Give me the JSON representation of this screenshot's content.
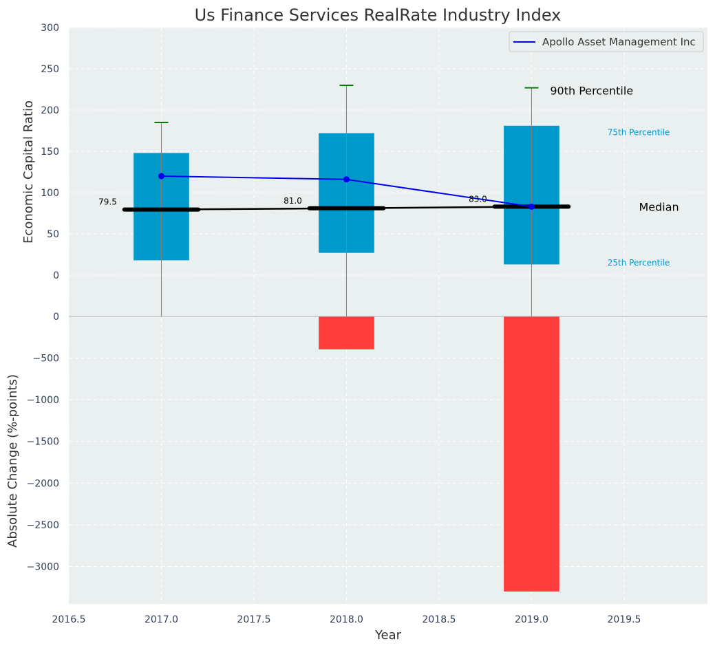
{
  "chart_data": [
    {
      "type": "box",
      "title": "Us Finance Services RealRate Industry Index",
      "ylabel": "Economic Capital Ratio",
      "ylim": [
        -50,
        300
      ],
      "yticks": [
        0,
        50,
        100,
        150,
        200,
        250,
        300
      ],
      "categories": [
        "2017.0",
        "2018.0",
        "2019.0"
      ],
      "x": [
        2017.0,
        2018.0,
        2019.0
      ],
      "series": [
        {
          "name": "25th Percentile",
          "values": [
            18,
            27,
            13
          ]
        },
        {
          "name": "75th Percentile",
          "values": [
            148,
            172,
            181
          ]
        },
        {
          "name": "Median",
          "values": [
            79.5,
            81.0,
            83.0
          ]
        },
        {
          "name": "90th Percentile",
          "values": [
            185,
            230,
            227
          ]
        },
        {
          "name": "Apollo Asset Management Inc",
          "values": [
            120,
            116,
            83
          ]
        }
      ],
      "median_labels": [
        "79.5",
        "81.0",
        "83.0"
      ],
      "annotations": {
        "p90": "90th Percentile",
        "p75": "75th Percentile",
        "median": "Median",
        "p25": "25th Percentile"
      },
      "legend": {
        "position": "top-right",
        "entries": [
          "Apollo Asset Management Inc"
        ]
      },
      "grid": true
    },
    {
      "type": "bar",
      "ylabel": "Absolute Change (%-points)",
      "xlabel": "Year",
      "x": [
        2017.0,
        2018.0,
        2019.0
      ],
      "values": [
        0,
        -395,
        -3300
      ],
      "ylim": [
        -3450,
        0
      ],
      "yticks": [
        0,
        -500,
        -1000,
        -1500,
        -2000,
        -2500,
        -3000
      ],
      "ytick_labels": [
        "0",
        "−500",
        "−1000",
        "−1500",
        "−2000",
        "−2500",
        "−3000"
      ],
      "xlim": [
        2016.5,
        2019.95
      ],
      "xticks": [
        2016.5,
        2017.0,
        2017.5,
        2018.0,
        2018.5,
        2019.0,
        2019.5
      ],
      "xtick_labels": [
        "2016.5",
        "2017.0",
        "2017.5",
        "2018.0",
        "2018.5",
        "2019.0",
        "2019.5"
      ],
      "grid": true
    }
  ],
  "colors": {
    "panel_bg": "#eaeff0",
    "grid": "#ffffff",
    "box": "#0099cc",
    "median": "#000000",
    "company_line": "#0000ee",
    "p90_cap": "#008000",
    "whisker": "#808080",
    "negative_bar": "#ff3d3d",
    "text": "#333333",
    "tick": "#2f3e55",
    "annot_cyan": "#0099cc"
  }
}
